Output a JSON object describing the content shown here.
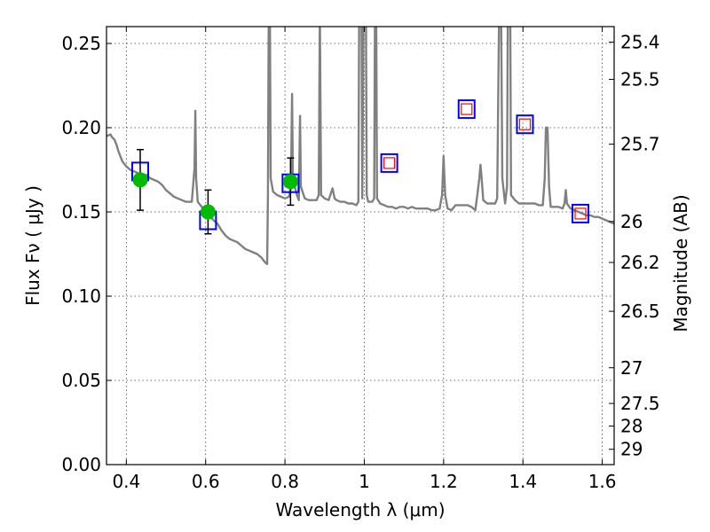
{
  "chart_data": {
    "type": "line",
    "title": "",
    "xlabel": "Wavelength  λ (μm)",
    "ylabel": "Flux  Fν  ( μJy )",
    "ylabel_right": "Magnitude (AB)",
    "xlim": [
      0.35,
      1.63
    ],
    "ylim": [
      0.0,
      0.26
    ],
    "grid": true,
    "x_ticks": [
      0.4,
      0.6,
      0.8,
      1.0,
      1.2,
      1.4,
      1.6
    ],
    "x_tick_labels": [
      "0.4",
      "0.6",
      "0.8",
      "1",
      "1.2",
      "1.4",
      "1.6"
    ],
    "y_ticks": [
      0.0,
      0.05,
      0.1,
      0.15,
      0.2,
      0.25
    ],
    "y_tick_labels": [
      "0.00",
      "0.05",
      "0.10",
      "0.15",
      "0.20",
      "0.25"
    ],
    "right_ticks": [
      {
        "label": "25.4",
        "flux": 0.2508
      },
      {
        "label": "25.5",
        "flux": 0.2287
      },
      {
        "label": "25.7",
        "flux": 0.1902
      },
      {
        "label": "26",
        "flux": 0.1443
      },
      {
        "label": "26.2",
        "flux": 0.12
      },
      {
        "label": "26.5",
        "flux": 0.091
      },
      {
        "label": "27",
        "flux": 0.0575
      },
      {
        "label": "27.5",
        "flux": 0.0363
      },
      {
        "label": "28",
        "flux": 0.0229
      },
      {
        "label": "29",
        "flux": 0.0091
      }
    ],
    "series": [
      {
        "kind": "spectrum",
        "color": "#808080",
        "points": [
          [
            0.35,
            0.195
          ],
          [
            0.36,
            0.196
          ],
          [
            0.365,
            0.194
          ],
          [
            0.37,
            0.193
          ],
          [
            0.375,
            0.19
          ],
          [
            0.38,
            0.186
          ],
          [
            0.39,
            0.18
          ],
          [
            0.4,
            0.177
          ],
          [
            0.41,
            0.175
          ],
          [
            0.42,
            0.174
          ],
          [
            0.43,
            0.173
          ],
          [
            0.44,
            0.172
          ],
          [
            0.45,
            0.172
          ],
          [
            0.46,
            0.17
          ],
          [
            0.47,
            0.169
          ],
          [
            0.48,
            0.168
          ],
          [
            0.49,
            0.166
          ],
          [
            0.5,
            0.163
          ],
          [
            0.51,
            0.161
          ],
          [
            0.52,
            0.159
          ],
          [
            0.53,
            0.158
          ],
          [
            0.54,
            0.157
          ],
          [
            0.55,
            0.156
          ],
          [
            0.56,
            0.156
          ],
          [
            0.565,
            0.156
          ],
          [
            0.572,
            0.176
          ],
          [
            0.574,
            0.21
          ],
          [
            0.576,
            0.17
          ],
          [
            0.58,
            0.156
          ],
          [
            0.59,
            0.153
          ],
          [
            0.6,
            0.15
          ],
          [
            0.61,
            0.148
          ],
          [
            0.62,
            0.145
          ],
          [
            0.63,
            0.143
          ],
          [
            0.64,
            0.139
          ],
          [
            0.65,
            0.136
          ],
          [
            0.66,
            0.134
          ],
          [
            0.67,
            0.133
          ],
          [
            0.68,
            0.132
          ],
          [
            0.69,
            0.13
          ],
          [
            0.7,
            0.128
          ],
          [
            0.71,
            0.127
          ],
          [
            0.72,
            0.126
          ],
          [
            0.73,
            0.125
          ],
          [
            0.74,
            0.123
          ],
          [
            0.75,
            0.12
          ],
          [
            0.755,
            0.119
          ],
          [
            0.757,
            0.16
          ],
          [
            0.759,
            0.27
          ],
          [
            0.762,
            0.27
          ],
          [
            0.764,
            0.17
          ],
          [
            0.77,
            0.162
          ],
          [
            0.78,
            0.16
          ],
          [
            0.79,
            0.159
          ],
          [
            0.8,
            0.158
          ],
          [
            0.81,
            0.159
          ],
          [
            0.815,
            0.165
          ],
          [
            0.818,
            0.22
          ],
          [
            0.82,
            0.17
          ],
          [
            0.83,
            0.16
          ],
          [
            0.835,
            0.157
          ],
          [
            0.838,
            0.207
          ],
          [
            0.84,
            0.165
          ],
          [
            0.85,
            0.158
          ],
          [
            0.86,
            0.157
          ],
          [
            0.87,
            0.157
          ],
          [
            0.88,
            0.157
          ],
          [
            0.885,
            0.16
          ],
          [
            0.888,
            0.27
          ],
          [
            0.891,
            0.16
          ],
          [
            0.9,
            0.158
          ],
          [
            0.91,
            0.157
          ],
          [
            0.92,
            0.164
          ],
          [
            0.925,
            0.158
          ],
          [
            0.93,
            0.157
          ],
          [
            0.94,
            0.156
          ],
          [
            0.95,
            0.156
          ],
          [
            0.96,
            0.155
          ],
          [
            0.97,
            0.155
          ],
          [
            0.98,
            0.154
          ],
          [
            0.985,
            0.156
          ],
          [
            0.987,
            0.27
          ],
          [
            0.993,
            0.27
          ],
          [
            0.995,
            0.158
          ],
          [
            0.998,
            0.27
          ],
          [
            1.004,
            0.27
          ],
          [
            1.006,
            0.16
          ],
          [
            1.01,
            0.156
          ],
          [
            1.02,
            0.156
          ],
          [
            1.025,
            0.158
          ],
          [
            1.027,
            0.27
          ],
          [
            1.03,
            0.27
          ],
          [
            1.032,
            0.158
          ],
          [
            1.04,
            0.155
          ],
          [
            1.05,
            0.154
          ],
          [
            1.06,
            0.153
          ],
          [
            1.07,
            0.153
          ],
          [
            1.08,
            0.152
          ],
          [
            1.09,
            0.153
          ],
          [
            1.1,
            0.153
          ],
          [
            1.11,
            0.152
          ],
          [
            1.12,
            0.153
          ],
          [
            1.13,
            0.152
          ],
          [
            1.14,
            0.152
          ],
          [
            1.15,
            0.152
          ],
          [
            1.16,
            0.152
          ],
          [
            1.17,
            0.151
          ],
          [
            1.18,
            0.151
          ],
          [
            1.19,
            0.152
          ],
          [
            1.196,
            0.16
          ],
          [
            1.2,
            0.183
          ],
          [
            1.204,
            0.16
          ],
          [
            1.21,
            0.152
          ],
          [
            1.22,
            0.151
          ],
          [
            1.23,
            0.154
          ],
          [
            1.24,
            0.154
          ],
          [
            1.25,
            0.154
          ],
          [
            1.26,
            0.154
          ],
          [
            1.27,
            0.153
          ],
          [
            1.28,
            0.151
          ],
          [
            1.285,
            0.16
          ],
          [
            1.29,
            0.17
          ],
          [
            1.293,
            0.178
          ],
          [
            1.296,
            0.17
          ],
          [
            1.3,
            0.157
          ],
          [
            1.31,
            0.155
          ],
          [
            1.32,
            0.155
          ],
          [
            1.33,
            0.155
          ],
          [
            1.335,
            0.158
          ],
          [
            1.34,
            0.27
          ],
          [
            1.345,
            0.27
          ],
          [
            1.348,
            0.17
          ],
          [
            1.355,
            0.155
          ],
          [
            1.36,
            0.165
          ],
          [
            1.362,
            0.27
          ],
          [
            1.368,
            0.27
          ],
          [
            1.37,
            0.16
          ],
          [
            1.38,
            0.157
          ],
          [
            1.39,
            0.155
          ],
          [
            1.4,
            0.155
          ],
          [
            1.41,
            0.155
          ],
          [
            1.42,
            0.155
          ],
          [
            1.43,
            0.155
          ],
          [
            1.44,
            0.154
          ],
          [
            1.45,
            0.154
          ],
          [
            1.455,
            0.17
          ],
          [
            1.458,
            0.2
          ],
          [
            1.462,
            0.2
          ],
          [
            1.466,
            0.165
          ],
          [
            1.47,
            0.153
          ],
          [
            1.48,
            0.153
          ],
          [
            1.49,
            0.153
          ],
          [
            1.5,
            0.152
          ],
          [
            1.505,
            0.155
          ],
          [
            1.508,
            0.163
          ],
          [
            1.511,
            0.155
          ],
          [
            1.52,
            0.152
          ],
          [
            1.53,
            0.151
          ],
          [
            1.54,
            0.15
          ],
          [
            1.55,
            0.149
          ],
          [
            1.56,
            0.148
          ],
          [
            1.57,
            0.148
          ],
          [
            1.58,
            0.147
          ],
          [
            1.59,
            0.147
          ],
          [
            1.6,
            0.146
          ],
          [
            1.61,
            0.145
          ],
          [
            1.62,
            0.144
          ],
          [
            1.63,
            0.143
          ]
        ]
      },
      {
        "kind": "model_magnitudes",
        "style": "open squares",
        "color": "#0000ff",
        "x": [
          0.435,
          0.606,
          0.814,
          1.063,
          1.258,
          1.405,
          1.545
        ],
        "y": [
          0.174,
          0.145,
          0.167,
          0.179,
          0.211,
          0.202,
          0.149
        ]
      },
      {
        "kind": "predicted_magnitudes",
        "style": "small open squares",
        "color": "#ff0000",
        "x": [
          1.063,
          1.258,
          1.405,
          1.545
        ],
        "y": [
          0.179,
          0.211,
          0.202,
          0.149
        ]
      },
      {
        "kind": "observed_photometry",
        "style": "filled circles with error bars",
        "color": "#00bb00",
        "x": [
          0.435,
          0.606,
          0.814
        ],
        "y": [
          0.169,
          0.15,
          0.168
        ],
        "yerr": [
          0.018,
          0.013,
          0.014
        ]
      }
    ]
  }
}
